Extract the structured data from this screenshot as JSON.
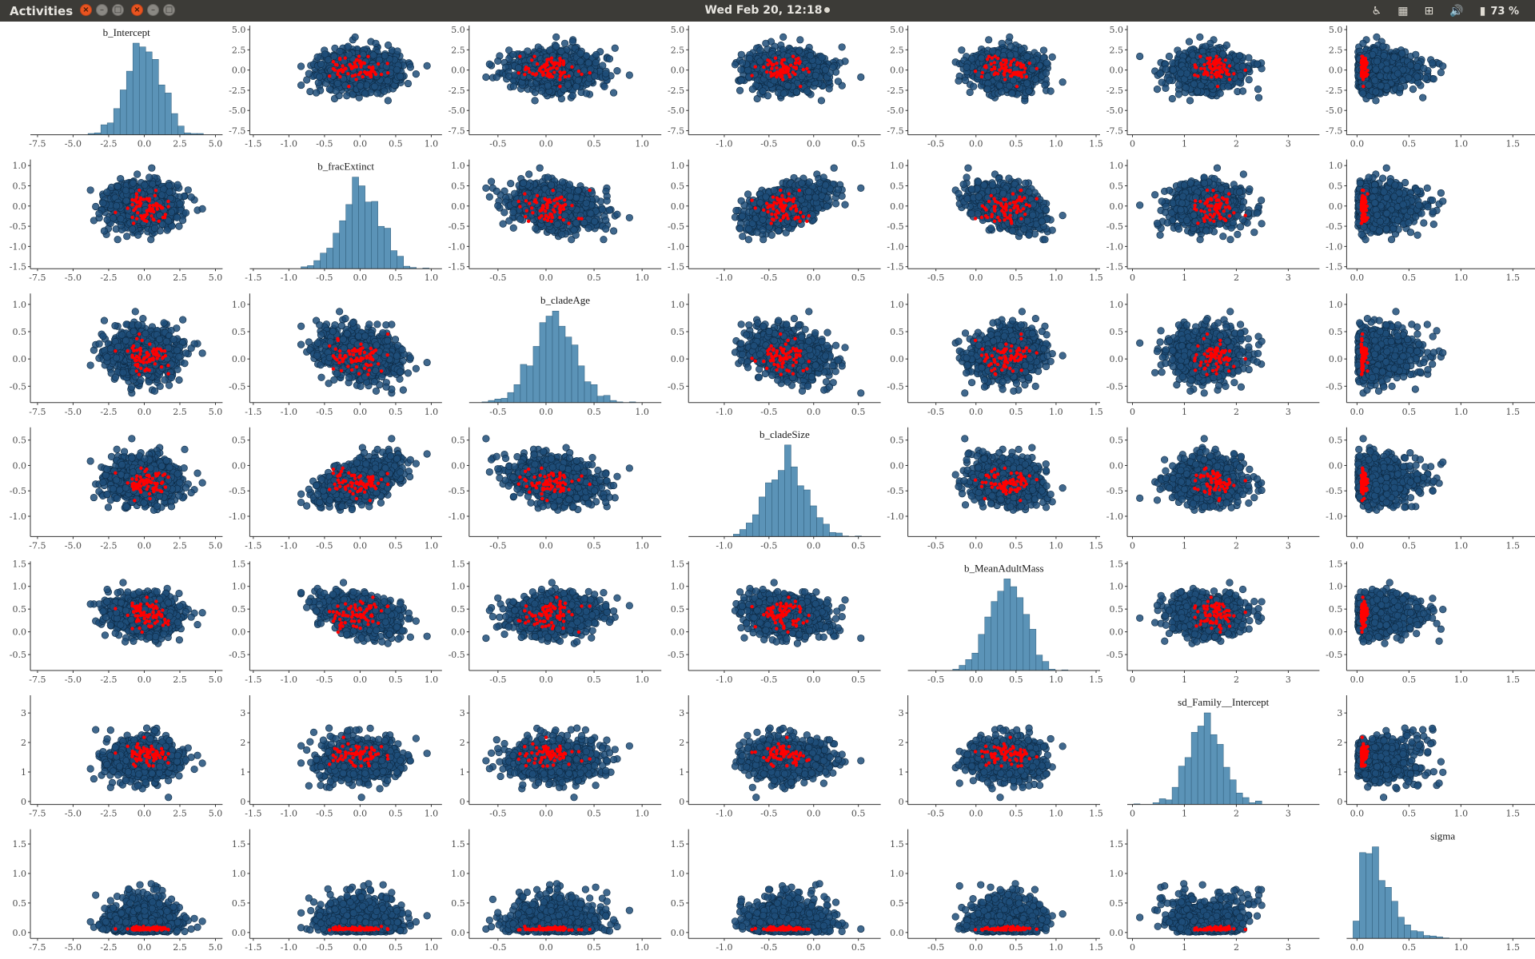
{
  "topbar": {
    "activities": "Activities",
    "clock": "Wed Feb 20, 12:18",
    "battery": "73 %",
    "window_buttons": [
      {
        "name": "close-button-1",
        "glyph": "×",
        "kind": "close"
      },
      {
        "name": "minimize-button-1",
        "glyph": "–",
        "kind": "other"
      },
      {
        "name": "maximize-button-1",
        "glyph": "□",
        "kind": "other"
      },
      {
        "name": "close-button-2",
        "glyph": "×",
        "kind": "close"
      },
      {
        "name": "minimize-button-2",
        "glyph": "–",
        "kind": "other"
      },
      {
        "name": "maximize-button-2",
        "glyph": "□",
        "kind": "other"
      }
    ],
    "tray_icons": [
      {
        "name": "accessibility-icon",
        "glyph": "♿"
      },
      {
        "name": "workspace-icon",
        "glyph": "▦"
      },
      {
        "name": "network-icon",
        "glyph": "⊞"
      },
      {
        "name": "volume-icon",
        "glyph": "🔊"
      },
      {
        "name": "battery-icon",
        "glyph": "▮"
      }
    ]
  },
  "chart_data": {
    "type": "scatter",
    "layout": "pairs-matrix",
    "point_color": "#1f4e79",
    "point_edge": "#0d2a44",
    "divergent_color": "#ff0000",
    "hist_color": "#5b93b7",
    "hist_edge": "#2e5c7a",
    "variables": [
      {
        "name": "b_Intercept",
        "range": [
          -8,
          5.5
        ],
        "ticks": [
          -7.5,
          -5,
          -2.5,
          0,
          2.5,
          5
        ],
        "tick_labels": [
          "-7.5",
          "-5.0",
          "-2.5",
          "0.0",
          "2.5",
          "5.0"
        ],
        "mean": 0,
        "sd": 1.25,
        "div_mean": 0,
        "div_sd": 0.8
      },
      {
        "name": "b_fracExtinct",
        "range": [
          -1.55,
          1.15
        ],
        "ticks": [
          -1.5,
          -1,
          -0.5,
          0,
          0.5,
          1
        ],
        "tick_labels": [
          "-1.5",
          "-1.0",
          "-0.5",
          "0.0",
          "0.5",
          "1.0"
        ],
        "mean": 0,
        "sd": 0.28,
        "div_mean": -0.05,
        "div_sd": 0.18
      },
      {
        "name": "b_cladeAge",
        "range": [
          -0.8,
          1.2
        ],
        "ticks": [
          -0.5,
          0,
          0.5,
          1
        ],
        "tick_labels": [
          "-0.5",
          "0.0",
          "0.5",
          "1.0"
        ],
        "mean": 0.1,
        "sd": 0.22,
        "div_mean": 0.05,
        "div_sd": 0.15
      },
      {
        "name": "b_cladeSize",
        "range": [
          -1.4,
          0.75
        ],
        "ticks": [
          -1,
          -0.5,
          0,
          0.5
        ],
        "tick_labels": [
          "-1.0",
          "-0.5",
          "0.0",
          "0.5"
        ],
        "mean": -0.3,
        "sd": 0.22,
        "div_mean": -0.35,
        "div_sd": 0.15
      },
      {
        "name": "b_MeanAdultMass",
        "range": [
          -0.85,
          1.55
        ],
        "ticks": [
          -0.5,
          0,
          0.5,
          1,
          1.5
        ],
        "tick_labels": [
          "-0.5",
          "0.0",
          "0.5",
          "1.0",
          "1.5"
        ],
        "mean": 0.4,
        "sd": 0.22,
        "div_mean": 0.4,
        "div_sd": 0.15
      },
      {
        "name": "sd_Family__Intercept",
        "range": [
          -0.1,
          3.6
        ],
        "ticks": [
          0,
          1,
          2,
          3
        ],
        "tick_labels": [
          "0",
          "1",
          "2",
          "3"
        ],
        "mean": 1.4,
        "sd": 0.35,
        "div_mean": 1.6,
        "div_sd": 0.2
      },
      {
        "name": "sigma",
        "range": [
          -0.1,
          1.75
        ],
        "ticks": [
          0,
          0.5,
          1,
          1.5
        ],
        "tick_labels": [
          "0.0",
          "0.5",
          "1.0",
          "1.5"
        ],
        "mean": 0.3,
        "sd": 0.25,
        "div_mean": 0.05,
        "div_sd": 0.03
      }
    ],
    "correlations": [
      [
        1,
        0,
        0,
        0,
        0,
        0,
        0
      ],
      [
        0,
        1,
        -0.3,
        0.55,
        -0.4,
        0,
        0
      ],
      [
        0,
        -0.3,
        1,
        -0.25,
        0.1,
        0,
        0
      ],
      [
        0,
        0.55,
        -0.25,
        1,
        -0.15,
        0,
        0
      ],
      [
        0,
        -0.4,
        0.1,
        -0.15,
        1,
        0,
        0
      ],
      [
        0,
        0,
        0,
        0,
        0,
        1,
        -0.55
      ],
      [
        0,
        0,
        0,
        0,
        0,
        -0.55,
        1
      ]
    ],
    "n_points": 1000,
    "n_divergent": 70,
    "hist_bins": 30
  }
}
